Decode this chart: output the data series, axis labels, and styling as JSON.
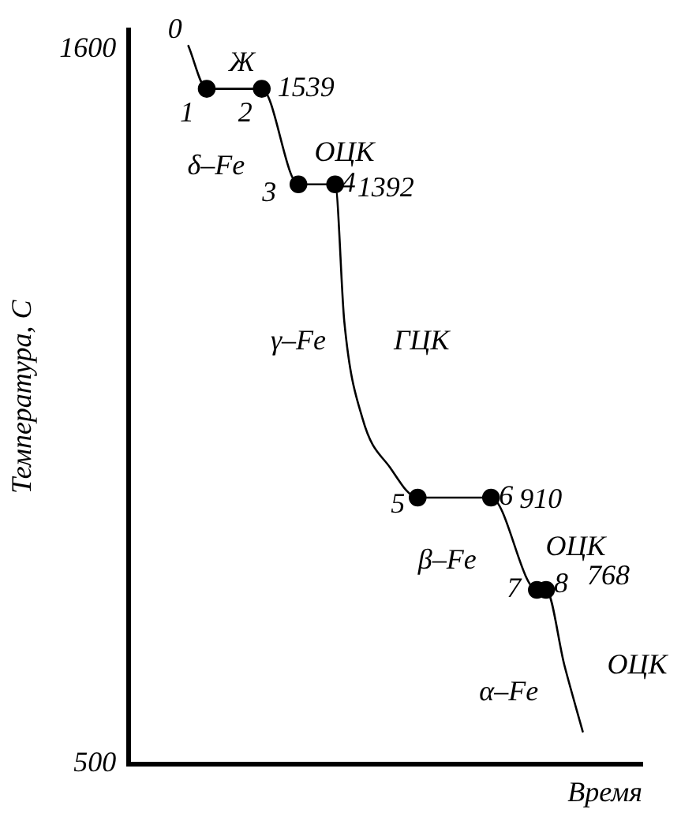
{
  "chart_data": {
    "type": "line",
    "xlabel": "Время",
    "ylabel": "Температура, С",
    "ylim": [
      500,
      1630
    ],
    "yticks": [
      500,
      1600
    ],
    "tick_labels": "y",
    "grid": false,
    "legend": false,
    "categories": [
      null,
      null,
      null,
      null,
      null,
      null,
      null,
      null,
      null,
      null,
      null,
      null,
      null,
      null,
      null,
      null,
      null,
      null,
      null,
      null,
      null,
      null,
      null,
      null,
      null,
      null,
      null,
      null,
      null,
      null,
      null,
      null,
      null,
      null,
      null,
      null,
      null,
      null,
      null,
      null,
      null,
      null,
      null,
      null,
      null,
      null,
      null,
      null,
      null,
      null,
      null,
      null,
      null,
      null,
      null,
      null
    ],
    "series": [
      {
        "type": "line",
        "color": "#000000",
        "marker": "none",
        "values": [
          null,
          null,
          null,
          null,
          null,
          null,
          1605,
          null,
          1539,
          null,
          null,
          null,
          null,
          null,
          1539,
          null,
          null,
          null,
          1392,
          null,
          null,
          null,
          1392,
          1181,
          null,
          1031,
          null,
          null,
          956,
          null,
          null,
          910,
          null,
          null,
          null,
          null,
          null,
          null,
          null,
          910,
          null,
          null,
          null,
          null,
          768,
          768,
          null,
          652,
          null,
          550,
          null,
          null,
          null,
          null,
          null,
          null
        ]
      },
      {
        "type": "scatter",
        "color": "#000000",
        "marker": "circle",
        "values": [
          null,
          null,
          null,
          null,
          null,
          null,
          null,
          null,
          1539,
          null,
          null,
          null,
          null,
          null,
          1539,
          null,
          null,
          null,
          1392,
          null,
          null,
          null,
          1392,
          null,
          null,
          null,
          null,
          null,
          null,
          null,
          null,
          910,
          null,
          null,
          null,
          null,
          null,
          null,
          null,
          910,
          null,
          null,
          null,
          null,
          768,
          768,
          null,
          null,
          null,
          null,
          null,
          null,
          null,
          null,
          null,
          null
        ]
      }
    ],
    "annotations": [
      "0",
      "1",
      "2",
      "3",
      "4",
      "5",
      "6",
      "7",
      "8",
      "1539",
      "1392",
      "910",
      "768",
      "Ж",
      "δ–Fe",
      "ОЦК",
      "γ–Fe",
      "ГЦК",
      "β–Fe",
      "ОЦК",
      "α–Fe",
      "ОЦК"
    ]
  }
}
